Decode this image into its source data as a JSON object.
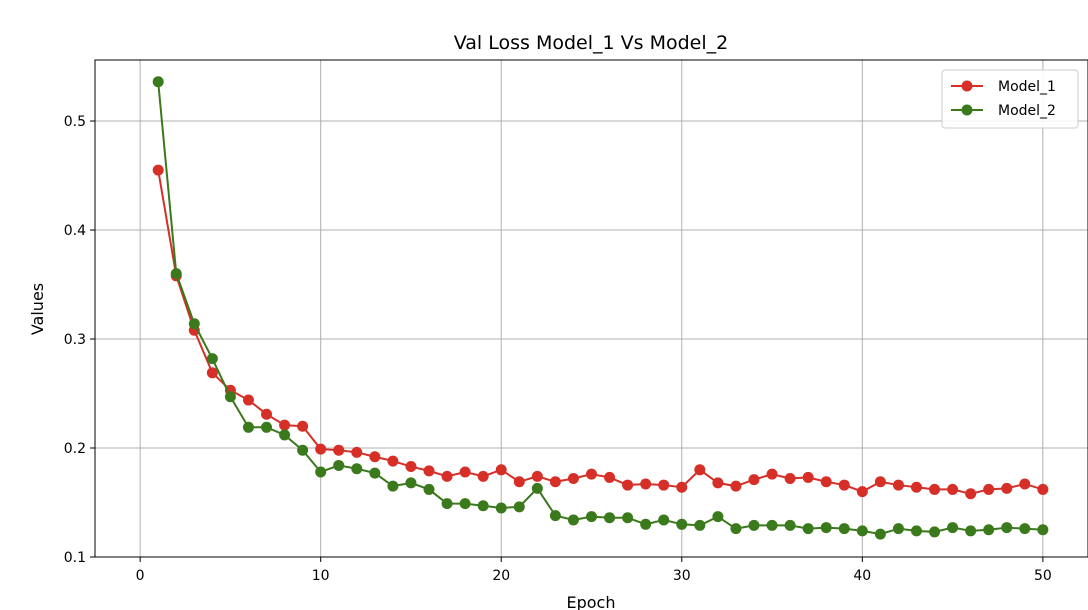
{
  "chart_data": {
    "type": "line",
    "title": "Val Loss Model_1 Vs Model_2",
    "xlabel": "Epoch",
    "ylabel": "Values",
    "xlim": [
      -2.5,
      52.5
    ],
    "ylim": [
      0.1,
      0.556
    ],
    "xticks": [
      "0",
      "10",
      "20",
      "30",
      "40",
      "50"
    ],
    "yticks": [
      "0.1",
      "0.2",
      "0.3",
      "0.4",
      "0.5"
    ],
    "grid": true,
    "legend_position": "top-right",
    "x": [
      1,
      2,
      3,
      4,
      5,
      6,
      7,
      8,
      9,
      10,
      11,
      12,
      13,
      14,
      15,
      16,
      17,
      18,
      19,
      20,
      21,
      22,
      23,
      24,
      25,
      26,
      27,
      28,
      29,
      30,
      31,
      32,
      33,
      34,
      35,
      36,
      37,
      38,
      39,
      40,
      41,
      42,
      43,
      44,
      45,
      46,
      47,
      48,
      49,
      50
    ],
    "series": [
      {
        "name": "Model_1",
        "color": "#d62f28",
        "values": [
          0.455,
          0.358,
          0.308,
          0.269,
          0.253,
          0.244,
          0.231,
          0.221,
          0.22,
          0.199,
          0.198,
          0.196,
          0.192,
          0.188,
          0.183,
          0.179,
          0.174,
          0.178,
          0.174,
          0.18,
          0.169,
          0.174,
          0.169,
          0.172,
          0.176,
          0.173,
          0.166,
          0.167,
          0.166,
          0.164,
          0.18,
          0.168,
          0.165,
          0.171,
          0.176,
          0.172,
          0.173,
          0.169,
          0.166,
          0.16,
          0.169,
          0.166,
          0.164,
          0.162,
          0.162,
          0.158,
          0.162,
          0.163,
          0.167,
          0.162
        ]
      },
      {
        "name": "Model_2",
        "color": "#3a7a1c",
        "values": [
          0.536,
          0.36,
          0.314,
          0.282,
          0.247,
          0.219,
          0.219,
          0.212,
          0.198,
          0.178,
          0.184,
          0.181,
          0.177,
          0.165,
          0.168,
          0.162,
          0.149,
          0.149,
          0.147,
          0.145,
          0.146,
          0.163,
          0.138,
          0.134,
          0.137,
          0.136,
          0.136,
          0.13,
          0.134,
          0.13,
          0.129,
          0.137,
          0.126,
          0.129,
          0.129,
          0.129,
          0.126,
          0.127,
          0.126,
          0.124,
          0.121,
          0.126,
          0.124,
          0.123,
          0.127,
          0.124,
          0.125,
          0.127,
          0.126,
          0.125
        ]
      }
    ]
  }
}
